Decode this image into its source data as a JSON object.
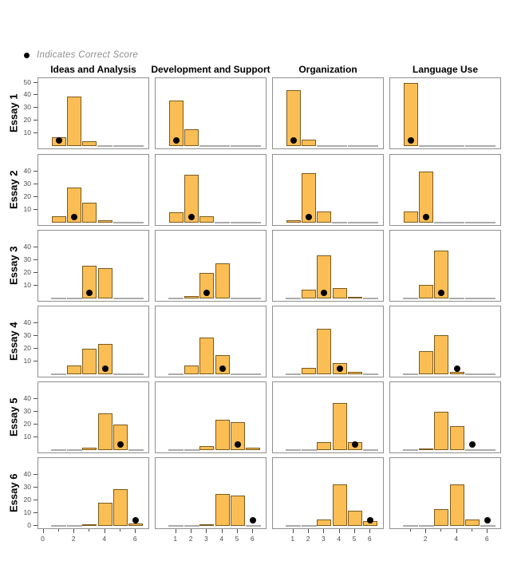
{
  "chart_data": {
    "type": "bar",
    "title": "",
    "legend_label": "Indicates Correct Score",
    "legend_position": "top-left",
    "columns": [
      "Ideas and Analysis",
      "Development and Support",
      "Organization",
      "Language Use"
    ],
    "rows": [
      "Essay 1",
      "Essay 2",
      "Essay 3",
      "Essay 4",
      "Essay 5",
      "Essay 6"
    ],
    "x_values": [
      1,
      2,
      3,
      4,
      5,
      6
    ],
    "y_axis": {
      "ymax": 51,
      "ticks_by_row": [
        [
          10,
          20,
          30,
          40,
          50
        ],
        [
          10,
          20,
          30,
          40
        ],
        [
          10,
          20,
          30,
          40
        ],
        [
          10,
          20,
          30,
          40
        ],
        [
          10,
          20,
          30,
          40
        ],
        [
          0,
          10,
          20,
          30,
          40
        ]
      ]
    },
    "x_axis": {
      "labels_by_column": [
        [
          0,
          2,
          4,
          6
        ],
        [
          1,
          2,
          3,
          4,
          5,
          6
        ],
        [
          1,
          2,
          3,
          4,
          5,
          6
        ],
        [
          2,
          4,
          6
        ]
      ],
      "minor_ticks_by_column": [
        [
          1,
          3,
          5
        ],
        [],
        [],
        [
          1,
          3,
          5
        ]
      ]
    },
    "panels": [
      {
        "essay": "Essay 1",
        "cells": [
          {
            "column": "Ideas and Analysis",
            "counts": [
              7,
              39,
              4,
              0,
              0,
              0
            ],
            "correct_score": 1
          },
          {
            "column": "Development and Support",
            "counts": [
              36,
              13,
              0,
              0,
              0,
              0
            ],
            "correct_score": 1
          },
          {
            "column": "Organization",
            "counts": [
              44,
              5,
              0,
              0,
              0,
              0
            ],
            "correct_score": 1
          },
          {
            "column": "Language Use",
            "counts": [
              50,
              0,
              0,
              0,
              0,
              0
            ],
            "correct_score": 1
          }
        ]
      },
      {
        "essay": "Essay 2",
        "cells": [
          {
            "column": "Ideas and Analysis",
            "counts": [
              5,
              28,
              16,
              2,
              0,
              0
            ],
            "correct_score": 2
          },
          {
            "column": "Development and Support",
            "counts": [
              8,
              38,
              5,
              0,
              0,
              0
            ],
            "correct_score": 2
          },
          {
            "column": "Organization",
            "counts": [
              2,
              39,
              9,
              0,
              0,
              0
            ],
            "correct_score": 2
          },
          {
            "column": "Language Use",
            "counts": [
              9,
              40,
              0,
              0,
              0,
              0
            ],
            "correct_score": 2
          }
        ]
      },
      {
        "essay": "Essay 3",
        "cells": [
          {
            "column": "Ideas and Analysis",
            "counts": [
              0,
              0,
              26,
              24,
              0,
              0
            ],
            "correct_score": 3
          },
          {
            "column": "Development and Support",
            "counts": [
              0,
              2,
              20,
              28,
              0,
              0
            ],
            "correct_score": 3
          },
          {
            "column": "Organization",
            "counts": [
              0,
              7,
              34,
              8,
              1,
              0
            ],
            "correct_score": 3
          },
          {
            "column": "Language Use",
            "counts": [
              0,
              11,
              38,
              0,
              0,
              0
            ],
            "correct_score": 3
          }
        ]
      },
      {
        "essay": "Essay 4",
        "cells": [
          {
            "column": "Ideas and Analysis",
            "counts": [
              0,
              7,
              20,
              24,
              0,
              0
            ],
            "correct_score": 4
          },
          {
            "column": "Development and Support",
            "counts": [
              0,
              7,
              29,
              15,
              0,
              0
            ],
            "correct_score": 4
          },
          {
            "column": "Organization",
            "counts": [
              0,
              5,
              36,
              9,
              2,
              0
            ],
            "correct_score": 4
          },
          {
            "column": "Language Use",
            "counts": [
              0,
              18,
              31,
              2,
              0,
              0
            ],
            "correct_score": 4
          }
        ]
      },
      {
        "essay": "Essay 5",
        "cells": [
          {
            "column": "Ideas and Analysis",
            "counts": [
              0,
              0,
              2,
              29,
              20,
              0
            ],
            "correct_score": 5
          },
          {
            "column": "Development and Support",
            "counts": [
              0,
              0,
              3,
              24,
              22,
              2
            ],
            "correct_score": 5
          },
          {
            "column": "Organization",
            "counts": [
              0,
              0,
              6,
              37,
              6,
              0
            ],
            "correct_score": 5
          },
          {
            "column": "Language Use",
            "counts": [
              0,
              1,
              30,
              19,
              0,
              0
            ],
            "correct_score": 5
          }
        ]
      },
      {
        "essay": "Essay 6",
        "cells": [
          {
            "column": "Ideas and Analysis",
            "counts": [
              0,
              0,
              1,
              18,
              29,
              2
            ],
            "correct_score": 6
          },
          {
            "column": "Development and Support",
            "counts": [
              0,
              0,
              1,
              25,
              24,
              0
            ],
            "correct_score": 6
          },
          {
            "column": "Organization",
            "counts": [
              0,
              0,
              5,
              33,
              12,
              4
            ],
            "correct_score": 6
          },
          {
            "column": "Language Use",
            "counts": [
              0,
              0,
              13,
              33,
              5,
              0
            ],
            "correct_score": 6
          }
        ]
      }
    ],
    "colors": {
      "bar_fill": "#FBBE55",
      "bar_border": "#7A5A1E",
      "correct_dot": "#000000",
      "panel_border": "#8F8F8F",
      "zero_dash": "#ABABAB",
      "axis_text": "#4D4D4D",
      "legend_text": "#8E8E8E",
      "title_text": "#000000"
    }
  }
}
